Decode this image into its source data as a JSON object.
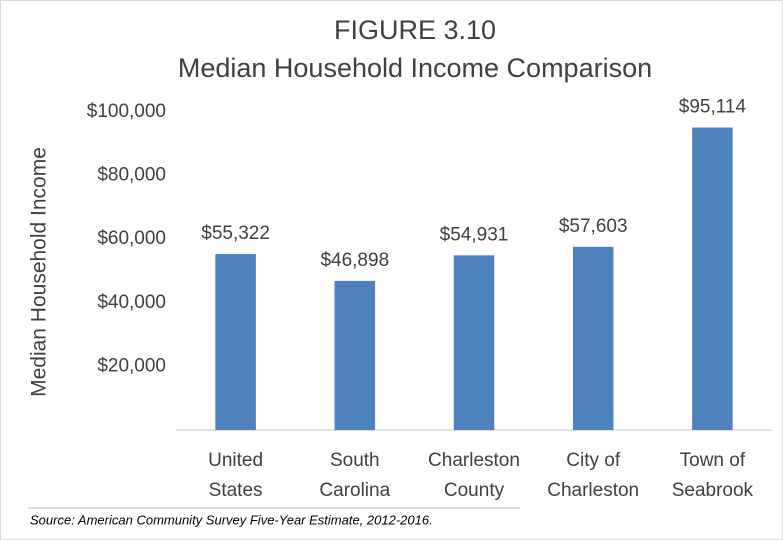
{
  "chart_data": {
    "type": "bar",
    "title": "FIGURE 3.10",
    "subtitle": "Median Household Income Comparison",
    "y_label": "Median Household Income",
    "source": "Source: American Community Survey Five-Year Estimate, 2012-2016.",
    "categories": [
      "United States",
      "South Carolina",
      "Charleston County",
      "City of Charleston",
      "Town of Seabrook"
    ],
    "values": [
      55322,
      46898,
      54931,
      57603,
      95114
    ],
    "value_labels": [
      "$55,322",
      "$46,898",
      "$54,931",
      "$57,603",
      "$95,114"
    ],
    "color": "#4f81bd",
    "ylim": [
      0,
      100000
    ],
    "yticks": [
      {
        "value": 20000,
        "label": "$20,000"
      },
      {
        "value": 40000,
        "label": "$40,000"
      },
      {
        "value": 60000,
        "label": "$60,000"
      },
      {
        "value": 80000,
        "label": "$80,000"
      },
      {
        "value": 100000,
        "label": "$100,000"
      }
    ],
    "grid": false
  }
}
